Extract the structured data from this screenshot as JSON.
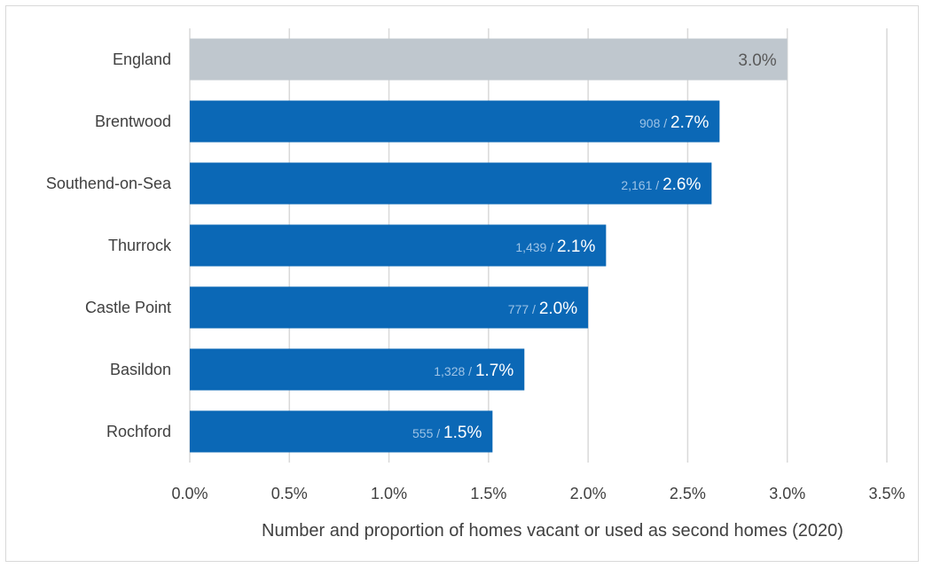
{
  "chart_data": {
    "type": "bar",
    "orientation": "horizontal",
    "categories": [
      "England",
      "Brentwood",
      "Southend-on-Sea",
      "Thurrock",
      "Castle Point",
      "Basildon",
      "Rochford"
    ],
    "values": [
      3.0,
      2.7,
      2.6,
      2.1,
      2.0,
      1.7,
      1.5
    ],
    "plotted_values": [
      3.0,
      2.66,
      2.62,
      2.09,
      2.0,
      1.68,
      1.52
    ],
    "counts": [
      null,
      "908",
      "2,161",
      "1,439",
      "777",
      "1,328",
      "555"
    ],
    "pct_labels": [
      "3.0%",
      "2.7%",
      "2.6%",
      "2.1%",
      "2.0%",
      "1.7%",
      "1.5%"
    ],
    "xlabel": "Number and proportion of homes vacant or used as second homes (2020)",
    "xlim": [
      0,
      3.5
    ],
    "xticks": [
      "0.0%",
      "0.5%",
      "1.0%",
      "1.5%",
      "2.0%",
      "2.5%",
      "3.0%",
      "3.5%"
    ],
    "grid": "vertical",
    "colors": {
      "highlight": "#bfc7ce",
      "bar": "#0b68b6",
      "grid": "#d9d9d9"
    }
  }
}
